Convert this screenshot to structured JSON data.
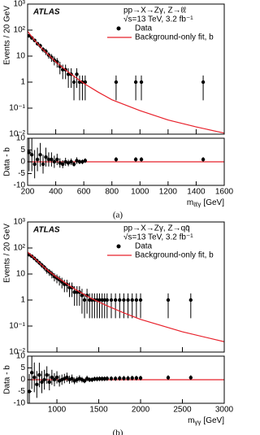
{
  "chart_data": [
    {
      "type": "scatter",
      "yscale": "log",
      "xlim": [
        200,
        1600
      ],
      "ylim": [
        0.01,
        1000
      ],
      "yticks": [
        {
          "value": 0.01,
          "label": "10⁻²"
        },
        {
          "value": 0.1,
          "label": "10⁻¹"
        },
        1,
        10,
        {
          "value": 100,
          "label": "10²"
        },
        {
          "value": 1000,
          "label": "10³"
        }
      ],
      "ylabel": "Events / 20 GeV",
      "label": "ATLAS",
      "annotations": [
        "pp→X→Zγ, Z→ℓℓ",
        "√s=13 TeV, 3.2 fb⁻¹"
      ],
      "series": [
        {
          "name": "Data",
          "type": "errorbar",
          "color": "#000000",
          "x": [
            210,
            230,
            250,
            270,
            290,
            310,
            330,
            350,
            370,
            390,
            410,
            430,
            450,
            470,
            490,
            510,
            530,
            550,
            570,
            590,
            610,
            830,
            970,
            1010,
            1450
          ],
          "values": [
            60,
            50,
            40,
            30,
            25,
            18,
            15,
            11,
            9,
            7,
            6,
            4,
            3,
            3,
            2,
            2,
            1,
            2,
            1,
            1,
            1,
            1,
            1,
            1,
            1
          ],
          "errors": [
            8,
            7,
            6,
            5,
            5,
            4,
            4,
            3,
            3,
            2.6,
            2.4,
            2,
            1.7,
            1.7,
            1.4,
            1.4,
            0.8,
            1.4,
            0.8,
            0.8,
            0.8,
            0.8,
            0.8,
            0.8,
            0.8
          ]
        },
        {
          "name": "Background-only fit, b",
          "type": "line",
          "color": "#e8202a",
          "x": [
            200,
            250,
            300,
            350,
            400,
            450,
            500,
            600,
            700,
            800,
            1000,
            1200,
            1400,
            1600
          ],
          "values": [
            90,
            40,
            20,
            11,
            6,
            3.6,
            2.2,
            0.9,
            0.42,
            0.21,
            0.08,
            0.035,
            0.019,
            0.011
          ]
        }
      ]
    },
    {
      "type": "scatter",
      "xlim": [
        200,
        1600
      ],
      "ylim": [
        -10,
        10
      ],
      "yticks": [
        -10,
        -5,
        0,
        5,
        10
      ],
      "xticks": [
        200,
        400,
        600,
        800,
        1000,
        1200,
        1400,
        1600
      ],
      "ylabel": "Data - b",
      "xlabel": {
        "symbol": "m",
        "subscript": "ℓℓγ",
        "unit": "[GeV]"
      },
      "reference_line": {
        "value": 0,
        "color": "#e8202a"
      },
      "caption": "(a)",
      "series": [
        {
          "type": "errorbar",
          "color": "#000000",
          "x": [
            210,
            230,
            250,
            270,
            290,
            310,
            330,
            350,
            370,
            390,
            410,
            430,
            450,
            470,
            490,
            510,
            530,
            550,
            570,
            590,
            610,
            830,
            970,
            1010,
            1450
          ],
          "values": [
            4,
            3,
            -1,
            1,
            3,
            -1,
            2,
            1,
            1,
            0,
            1,
            -0.5,
            -1,
            0,
            -0.5,
            0,
            -1,
            0.5,
            0,
            0,
            0.5,
            1,
            1,
            1,
            1
          ],
          "errors": [
            8,
            7,
            6,
            5,
            5,
            4,
            4,
            3,
            3,
            2.6,
            2.4,
            2,
            1.7,
            1.7,
            1.4,
            1.4,
            1,
            1.4,
            1,
            1,
            1,
            1,
            1,
            1,
            1
          ]
        }
      ]
    },
    {
      "type": "scatter",
      "yscale": "log",
      "xlim": [
        650,
        3000
      ],
      "ylim": [
        0.01,
        1000
      ],
      "yticks": [
        {
          "value": 0.01,
          "label": "10⁻²"
        },
        {
          "value": 0.1,
          "label": "10⁻¹"
        },
        1,
        10,
        {
          "value": 100,
          "label": "10²"
        },
        {
          "value": 1000,
          "label": "10³"
        }
      ],
      "ylabel": "Events / 20 GeV",
      "label": "ATLAS",
      "annotations": [
        "pp→X→Zγ, Z→qq̄",
        "√s=13 TeV, 3.2 fb⁻¹"
      ],
      "series": [
        {
          "name": "Data",
          "type": "errorbar",
          "color": "#000000",
          "x": [
            670,
            700,
            730,
            760,
            790,
            820,
            850,
            880,
            910,
            940,
            970,
            1000,
            1030,
            1060,
            1090,
            1120,
            1150,
            1180,
            1210,
            1240,
            1270,
            1300,
            1330,
            1360,
            1390,
            1420,
            1450,
            1480,
            1510,
            1540,
            1570,
            1600,
            1650,
            1700,
            1750,
            1800,
            1850,
            1900,
            1950,
            2000,
            2330,
            2600
          ],
          "values": [
            55,
            48,
            40,
            33,
            27,
            22,
            18,
            14,
            12,
            10,
            8,
            7,
            6,
            5,
            4,
            4,
            3,
            3,
            2,
            2,
            2,
            1.5,
            1,
            1.5,
            1,
            1,
            1,
            1,
            1,
            1,
            1,
            1,
            1,
            1,
            1,
            1,
            1,
            1,
            1,
            1,
            1,
            1
          ],
          "errors": [
            7.4,
            6.9,
            6.3,
            5.7,
            5.2,
            4.7,
            4.2,
            3.7,
            3.5,
            3.2,
            2.8,
            2.6,
            2.4,
            2.2,
            2,
            2,
            1.7,
            1.7,
            1.4,
            1.4,
            1.4,
            1.2,
            0.8,
            1.2,
            0.8,
            0.8,
            0.8,
            0.8,
            0.8,
            0.8,
            0.8,
            0.8,
            0.8,
            0.8,
            0.8,
            0.8,
            0.8,
            0.8,
            0.8,
            0.8,
            0.8,
            0.8
          ]
        },
        {
          "name": "Background-only fit, b",
          "type": "line",
          "color": "#e8202a",
          "x": [
            650,
            700,
            800,
            900,
            1000,
            1200,
            1400,
            1600,
            1800,
            2000,
            2500,
            3000
          ],
          "values": [
            70,
            50,
            25,
            13,
            7.5,
            2.8,
            1.2,
            0.6,
            0.32,
            0.18,
            0.06,
            0.025
          ]
        }
      ]
    },
    {
      "type": "scatter",
      "xlim": [
        650,
        3000
      ],
      "ylim": [
        -10,
        10
      ],
      "yticks": [
        -10,
        -5,
        0,
        5,
        10
      ],
      "xticks": [
        1000,
        1500,
        2000,
        2500,
        3000
      ],
      "ylabel": "Data - b",
      "xlabel": {
        "symbol": "m",
        "subscript": "γγ",
        "unit": "[GeV]"
      },
      "reference_line": {
        "value": 0,
        "color": "#e8202a"
      },
      "caption": "(b)",
      "series": [
        {
          "type": "errorbar",
          "color": "#000000",
          "x": [
            670,
            700,
            730,
            760,
            790,
            820,
            850,
            880,
            910,
            940,
            970,
            1000,
            1030,
            1060,
            1090,
            1120,
            1150,
            1180,
            1210,
            1240,
            1270,
            1300,
            1330,
            1360,
            1390,
            1420,
            1450,
            1480,
            1510,
            1540,
            1570,
            1600,
            1650,
            1700,
            1750,
            1800,
            1850,
            1900,
            1950,
            2000,
            2330,
            2600
          ],
          "values": [
            -5,
            3,
            1,
            -2,
            2,
            -1,
            0,
            2,
            -1,
            1,
            0,
            1,
            -0.5,
            0,
            0.5,
            1,
            0,
            0.5,
            -0.5,
            0,
            0.5,
            0,
            -0.5,
            0.5,
            0,
            0,
            0.3,
            0.3,
            0.4,
            0.4,
            0.4,
            0.5,
            0.5,
            0.5,
            0.6,
            0.6,
            0.6,
            0.7,
            0.7,
            0.7,
            0.9,
            0.9
          ],
          "errors": [
            7.4,
            6.9,
            6.3,
            5.7,
            5.2,
            4.7,
            4.2,
            3.7,
            3.5,
            3.2,
            2.8,
            2.6,
            2.4,
            2.2,
            2,
            2,
            1.7,
            1.7,
            1.4,
            1.4,
            1.4,
            1.2,
            1,
            1.2,
            1,
            1,
            1,
            1,
            1,
            1,
            1,
            1,
            1,
            1,
            1,
            1,
            1,
            1,
            1,
            1,
            1,
            1
          ]
        }
      ]
    }
  ]
}
